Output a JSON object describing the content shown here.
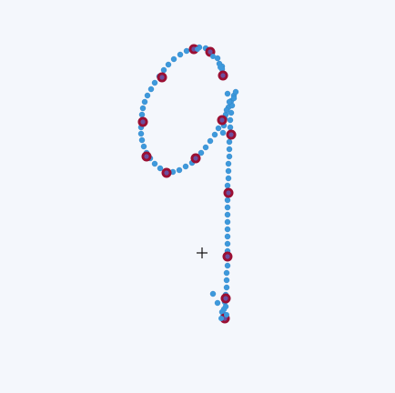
{
  "colors": {
    "background": "#f4f7fc",
    "stroke_point": "#3d99dc",
    "stroke_point_edge": "#2d7fc0",
    "key_point_outer": "#9b0f33",
    "key_point_inner": "#6b4f9e",
    "cursor": "#111111"
  },
  "icons": {
    "cursor": "crosshair-cursor-icon"
  }
}
